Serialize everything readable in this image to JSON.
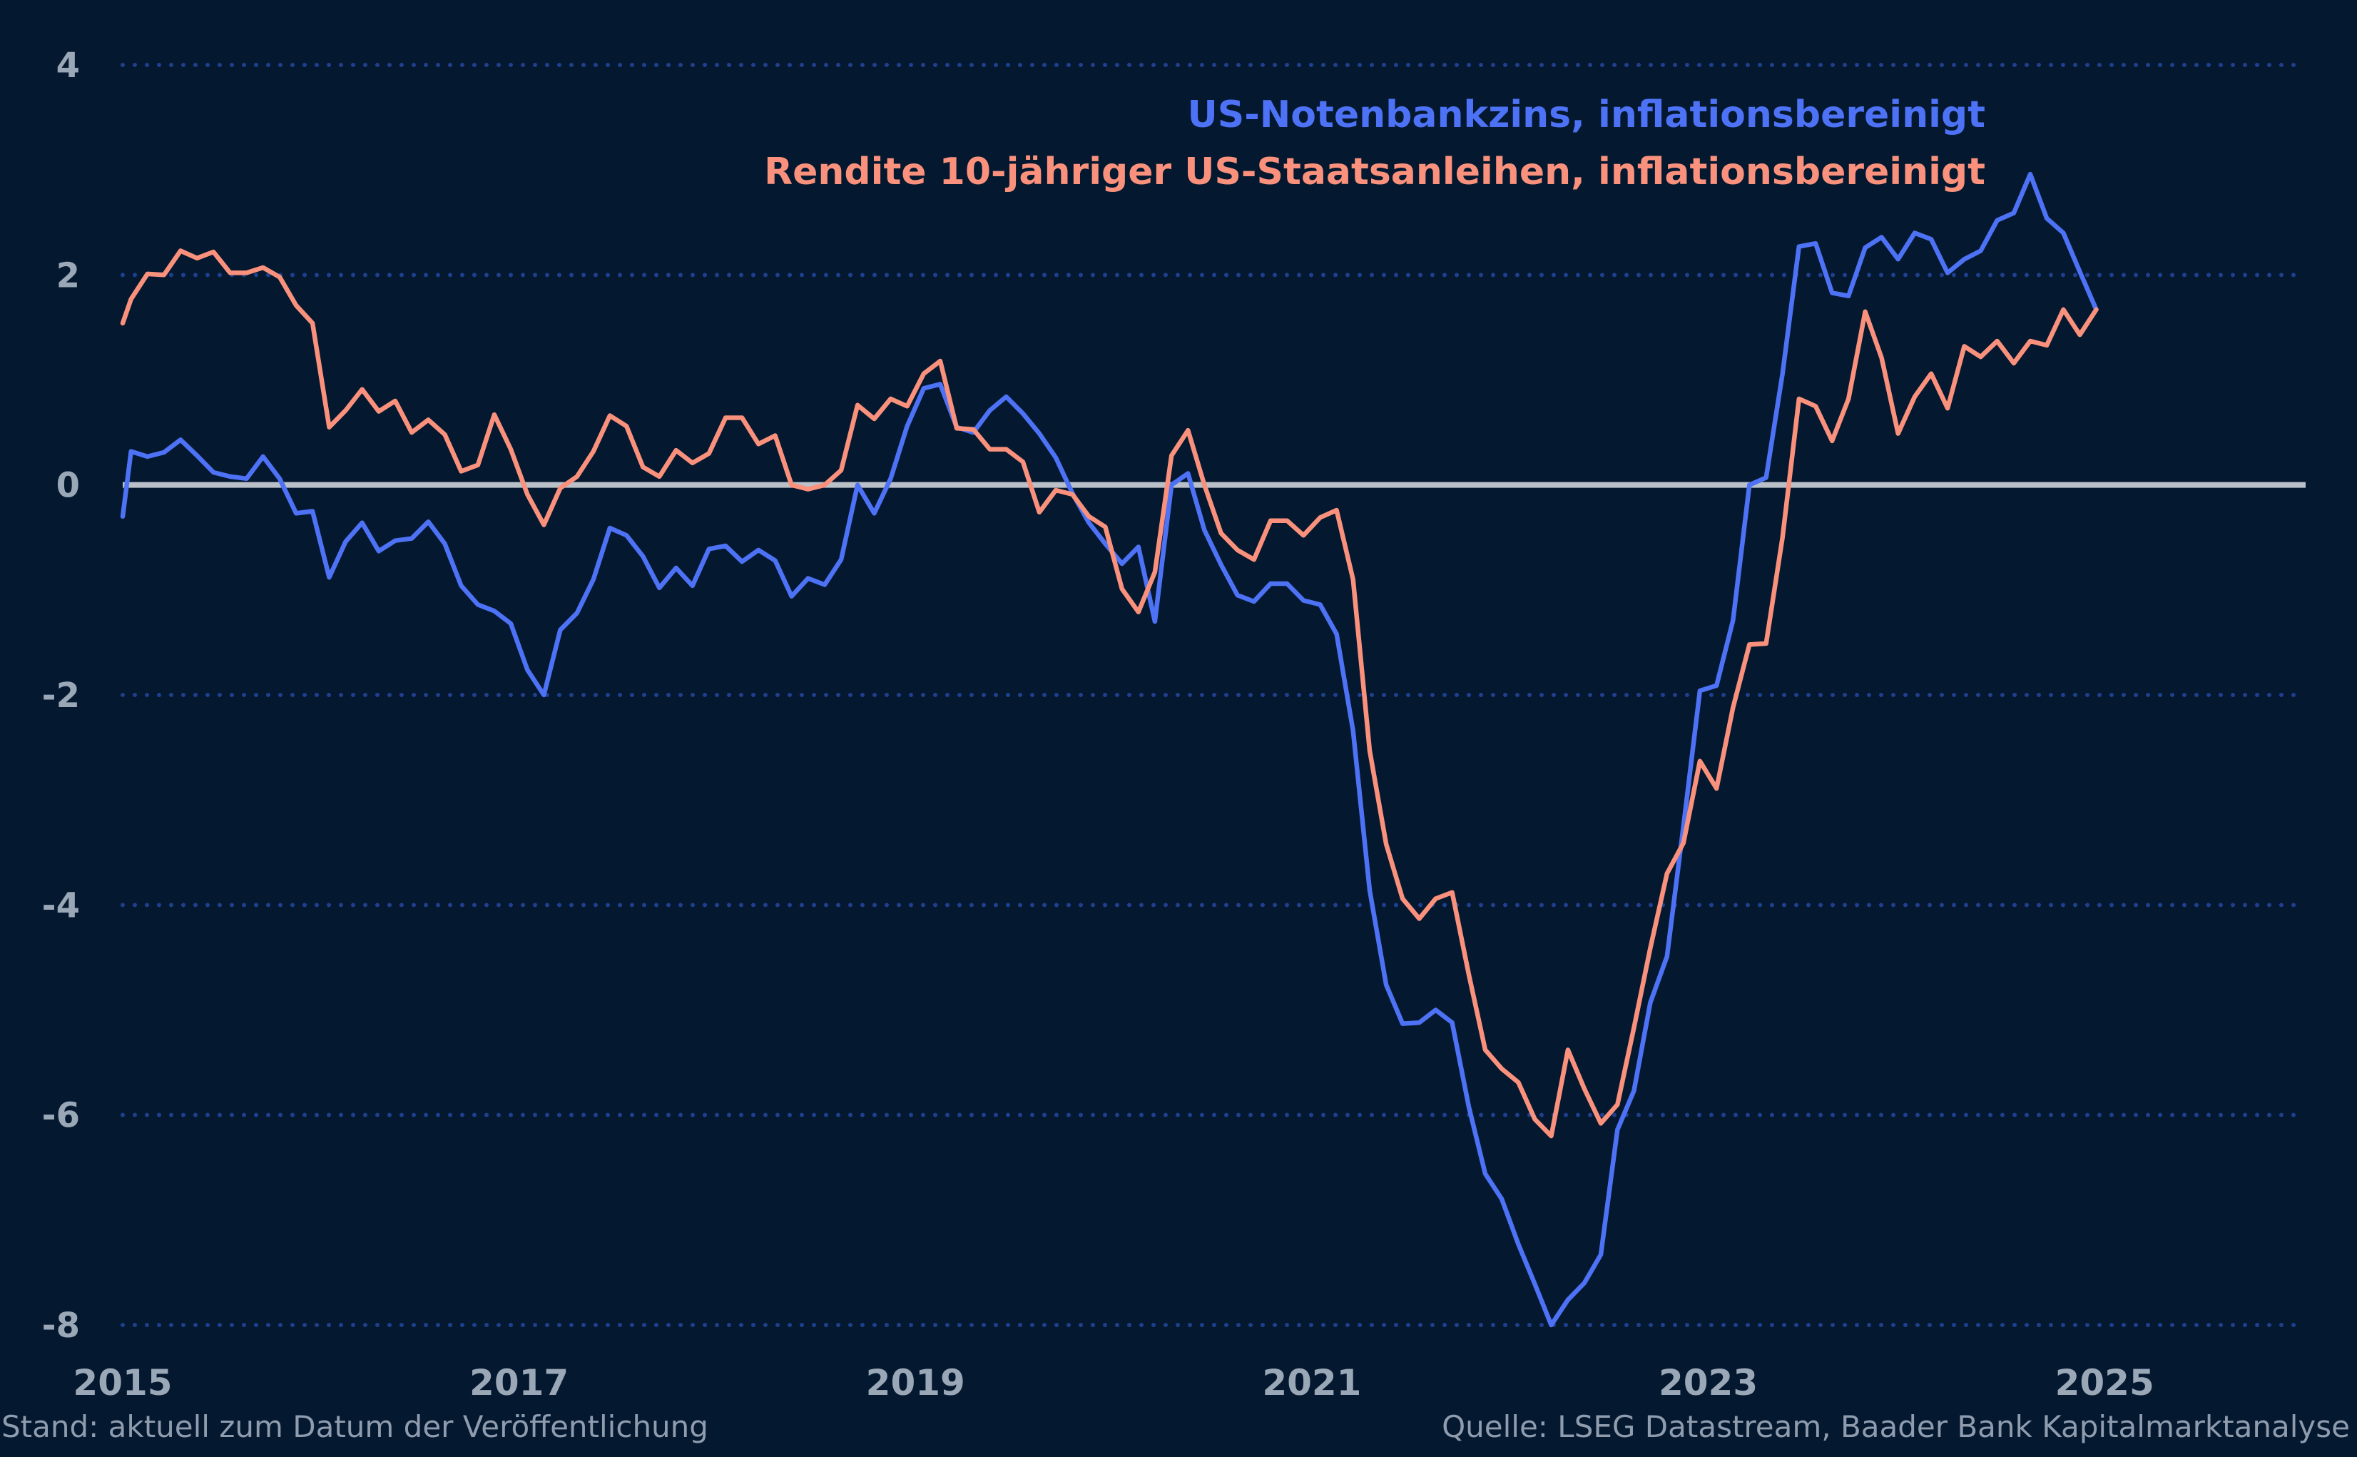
{
  "colors": {
    "background": "#04182f",
    "grid": "#1f3f8f",
    "zero_line": "#b9c0c8",
    "tick_text": "#9aa7b7",
    "footer_text": "#8f9cae"
  },
  "chart_data": {
    "type": "line",
    "title": "",
    "xlabel": "",
    "ylabel": "",
    "xlim": [
      2015.0,
      2026.0
    ],
    "ylim": [
      -8,
      4
    ],
    "y_ticks": [
      "4",
      "2",
      "0",
      "-2",
      "-4",
      "-6",
      "-8"
    ],
    "y_tick_values": [
      4,
      2,
      0,
      -2,
      -4,
      -6,
      -8
    ],
    "x_ticks": [
      "2015",
      "2017",
      "2019",
      "2021",
      "2023",
      "2025"
    ],
    "x_tick_values": [
      2015,
      2017,
      2019,
      2021,
      2023,
      2025
    ],
    "grid": "horizontal dotted",
    "legend_position": "top-right",
    "series": [
      {
        "name": "US-Notenbankzins, inflationsbereinigt",
        "color": "#4d72f5",
        "x": [
          2015.0,
          2015.042,
          2015.125,
          2015.208,
          2015.292,
          2015.375,
          2015.458,
          2015.542,
          2015.625,
          2015.708,
          2015.792,
          2015.875,
          2015.958,
          2016.042,
          2016.125,
          2016.208,
          2016.292,
          2016.375,
          2016.458,
          2016.542,
          2016.625,
          2016.708,
          2016.792,
          2016.875,
          2016.958,
          2017.042,
          2017.125,
          2017.208,
          2017.292,
          2017.375,
          2017.458,
          2017.542,
          2017.625,
          2017.708,
          2017.792,
          2017.875,
          2017.958,
          2018.042,
          2018.125,
          2018.208,
          2018.292,
          2018.375,
          2018.458,
          2018.542,
          2018.625,
          2018.708,
          2018.792,
          2018.875,
          2018.958,
          2019.042,
          2019.125,
          2019.208,
          2019.292,
          2019.375,
          2019.458,
          2019.542,
          2019.625,
          2019.708,
          2019.792,
          2019.875,
          2019.958,
          2020.042,
          2020.125,
          2020.208,
          2020.292,
          2020.375,
          2020.458,
          2020.542,
          2020.625,
          2020.708,
          2020.792,
          2020.875,
          2020.958,
          2021.042,
          2021.125,
          2021.208,
          2021.292,
          2021.375,
          2021.458,
          2021.542,
          2021.625,
          2021.708,
          2021.792,
          2021.875,
          2021.958,
          2022.042,
          2022.125,
          2022.208,
          2022.292,
          2022.375,
          2022.458,
          2022.542,
          2022.625,
          2022.708,
          2022.792,
          2022.875,
          2022.958,
          2023.042,
          2023.125,
          2023.208,
          2023.292,
          2023.375,
          2023.458,
          2023.542,
          2023.625,
          2023.708,
          2023.792,
          2023.875,
          2023.958,
          2024.042,
          2024.125,
          2024.208,
          2024.292,
          2024.375,
          2024.458,
          2024.542,
          2024.625,
          2024.708,
          2024.792,
          2024.875,
          2024.958
        ],
        "values": [
          -0.3,
          0.32,
          0.27,
          0.31,
          0.43,
          0.28,
          0.12,
          0.08,
          0.06,
          0.27,
          0.06,
          -0.27,
          -0.25,
          -0.88,
          -0.54,
          -0.36,
          -0.63,
          -0.53,
          -0.51,
          -0.35,
          -0.56,
          -0.96,
          -1.14,
          -1.2,
          -1.32,
          -1.76,
          -2.0,
          -1.38,
          -1.22,
          -0.9,
          -0.41,
          -0.48,
          -0.68,
          -0.98,
          -0.79,
          -0.96,
          -0.61,
          -0.58,
          -0.73,
          -0.62,
          -0.72,
          -1.06,
          -0.89,
          -0.95,
          -0.71,
          0.0,
          -0.27,
          0.06,
          0.56,
          0.92,
          0.96,
          0.55,
          0.5,
          0.71,
          0.84,
          0.68,
          0.49,
          0.26,
          -0.08,
          -0.36,
          -0.56,
          -0.75,
          -0.59,
          -1.3,
          0.0,
          0.11,
          -0.43,
          -0.76,
          -1.05,
          -1.11,
          -0.94,
          -0.94,
          -1.1,
          -1.14,
          -1.42,
          -2.34,
          -3.86,
          -4.76,
          -5.13,
          -5.12,
          -5.0,
          -5.12,
          -5.92,
          -6.56,
          -6.8,
          -7.23,
          -7.61,
          -8.0,
          -7.76,
          -7.6,
          -7.33,
          -6.14,
          -5.77,
          -4.93,
          -4.49,
          -3.25,
          -1.96,
          -1.91,
          -1.29,
          0.0,
          0.07,
          1.06,
          2.27,
          2.3,
          1.83,
          1.8,
          2.26,
          2.36,
          2.15,
          2.4,
          2.34,
          2.02,
          2.15,
          2.23,
          2.52,
          2.59,
          2.96,
          2.54,
          2.4,
          2.03,
          1.67
        ]
      },
      {
        "name": "Rendite 10-jähriger US-Staatsanleihen, inflationsbereinigt",
        "color": "#f9917c",
        "x": [
          2015.0,
          2015.042,
          2015.125,
          2015.208,
          2015.292,
          2015.375,
          2015.458,
          2015.542,
          2015.625,
          2015.708,
          2015.792,
          2015.875,
          2015.958,
          2016.042,
          2016.125,
          2016.208,
          2016.292,
          2016.375,
          2016.458,
          2016.542,
          2016.625,
          2016.708,
          2016.792,
          2016.875,
          2016.958,
          2017.042,
          2017.125,
          2017.208,
          2017.292,
          2017.375,
          2017.458,
          2017.542,
          2017.625,
          2017.708,
          2017.792,
          2017.875,
          2017.958,
          2018.042,
          2018.125,
          2018.208,
          2018.292,
          2018.375,
          2018.458,
          2018.542,
          2018.625,
          2018.708,
          2018.792,
          2018.875,
          2018.958,
          2019.042,
          2019.125,
          2019.208,
          2019.292,
          2019.375,
          2019.458,
          2019.542,
          2019.625,
          2019.708,
          2019.792,
          2019.875,
          2019.958,
          2020.042,
          2020.125,
          2020.208,
          2020.292,
          2020.375,
          2020.458,
          2020.542,
          2020.625,
          2020.708,
          2020.792,
          2020.875,
          2020.958,
          2021.042,
          2021.125,
          2021.208,
          2021.292,
          2021.375,
          2021.458,
          2021.542,
          2021.625,
          2021.708,
          2021.792,
          2021.875,
          2021.958,
          2022.042,
          2022.125,
          2022.208,
          2022.292,
          2022.375,
          2022.458,
          2022.542,
          2022.625,
          2022.708,
          2022.792,
          2022.875,
          2022.958,
          2023.042,
          2023.125,
          2023.208,
          2023.292,
          2023.375,
          2023.458,
          2023.542,
          2023.625,
          2023.708,
          2023.792,
          2023.875,
          2023.958,
          2024.042,
          2024.125,
          2024.208,
          2024.292,
          2024.375,
          2024.458,
          2024.542,
          2024.625,
          2024.708,
          2024.792,
          2024.875,
          2024.958
        ],
        "values": [
          1.54,
          1.77,
          2.01,
          2.0,
          2.23,
          2.16,
          2.22,
          2.02,
          2.02,
          2.07,
          1.98,
          1.71,
          1.54,
          0.55,
          0.71,
          0.91,
          0.7,
          0.8,
          0.5,
          0.62,
          0.48,
          0.13,
          0.19,
          0.67,
          0.34,
          -0.09,
          -0.38,
          -0.03,
          0.08,
          0.32,
          0.66,
          0.56,
          0.17,
          0.08,
          0.33,
          0.21,
          0.3,
          0.64,
          0.64,
          0.39,
          0.47,
          0.0,
          -0.04,
          0.0,
          0.14,
          0.76,
          0.63,
          0.82,
          0.75,
          1.06,
          1.18,
          0.54,
          0.53,
          0.34,
          0.34,
          0.22,
          -0.26,
          -0.05,
          -0.09,
          -0.3,
          -0.4,
          -0.99,
          -1.21,
          -0.83,
          0.28,
          0.52,
          0.0,
          -0.46,
          -0.62,
          -0.71,
          -0.34,
          -0.34,
          -0.48,
          -0.31,
          -0.24,
          -0.9,
          -2.53,
          -3.42,
          -3.94,
          -4.13,
          -3.94,
          -3.88,
          -4.66,
          -5.38,
          -5.56,
          -5.69,
          -6.04,
          -6.2,
          -5.38,
          -5.75,
          -6.08,
          -5.9,
          -5.17,
          -4.41,
          -3.7,
          -3.41,
          -2.63,
          -2.89,
          -2.12,
          -1.52,
          -1.51,
          -0.5,
          0.82,
          0.75,
          0.42,
          0.82,
          1.65,
          1.21,
          0.49,
          0.84,
          1.06,
          0.73,
          1.32,
          1.22,
          1.37,
          1.16,
          1.37,
          1.33,
          1.67,
          1.43,
          1.67
        ]
      }
    ],
    "footer_left": "Stand: aktuell zum Datum der Veröffentlichung",
    "footer_right": "Quelle: LSEG Datastream, Baader Bank Kapitalmarktanalyse"
  }
}
